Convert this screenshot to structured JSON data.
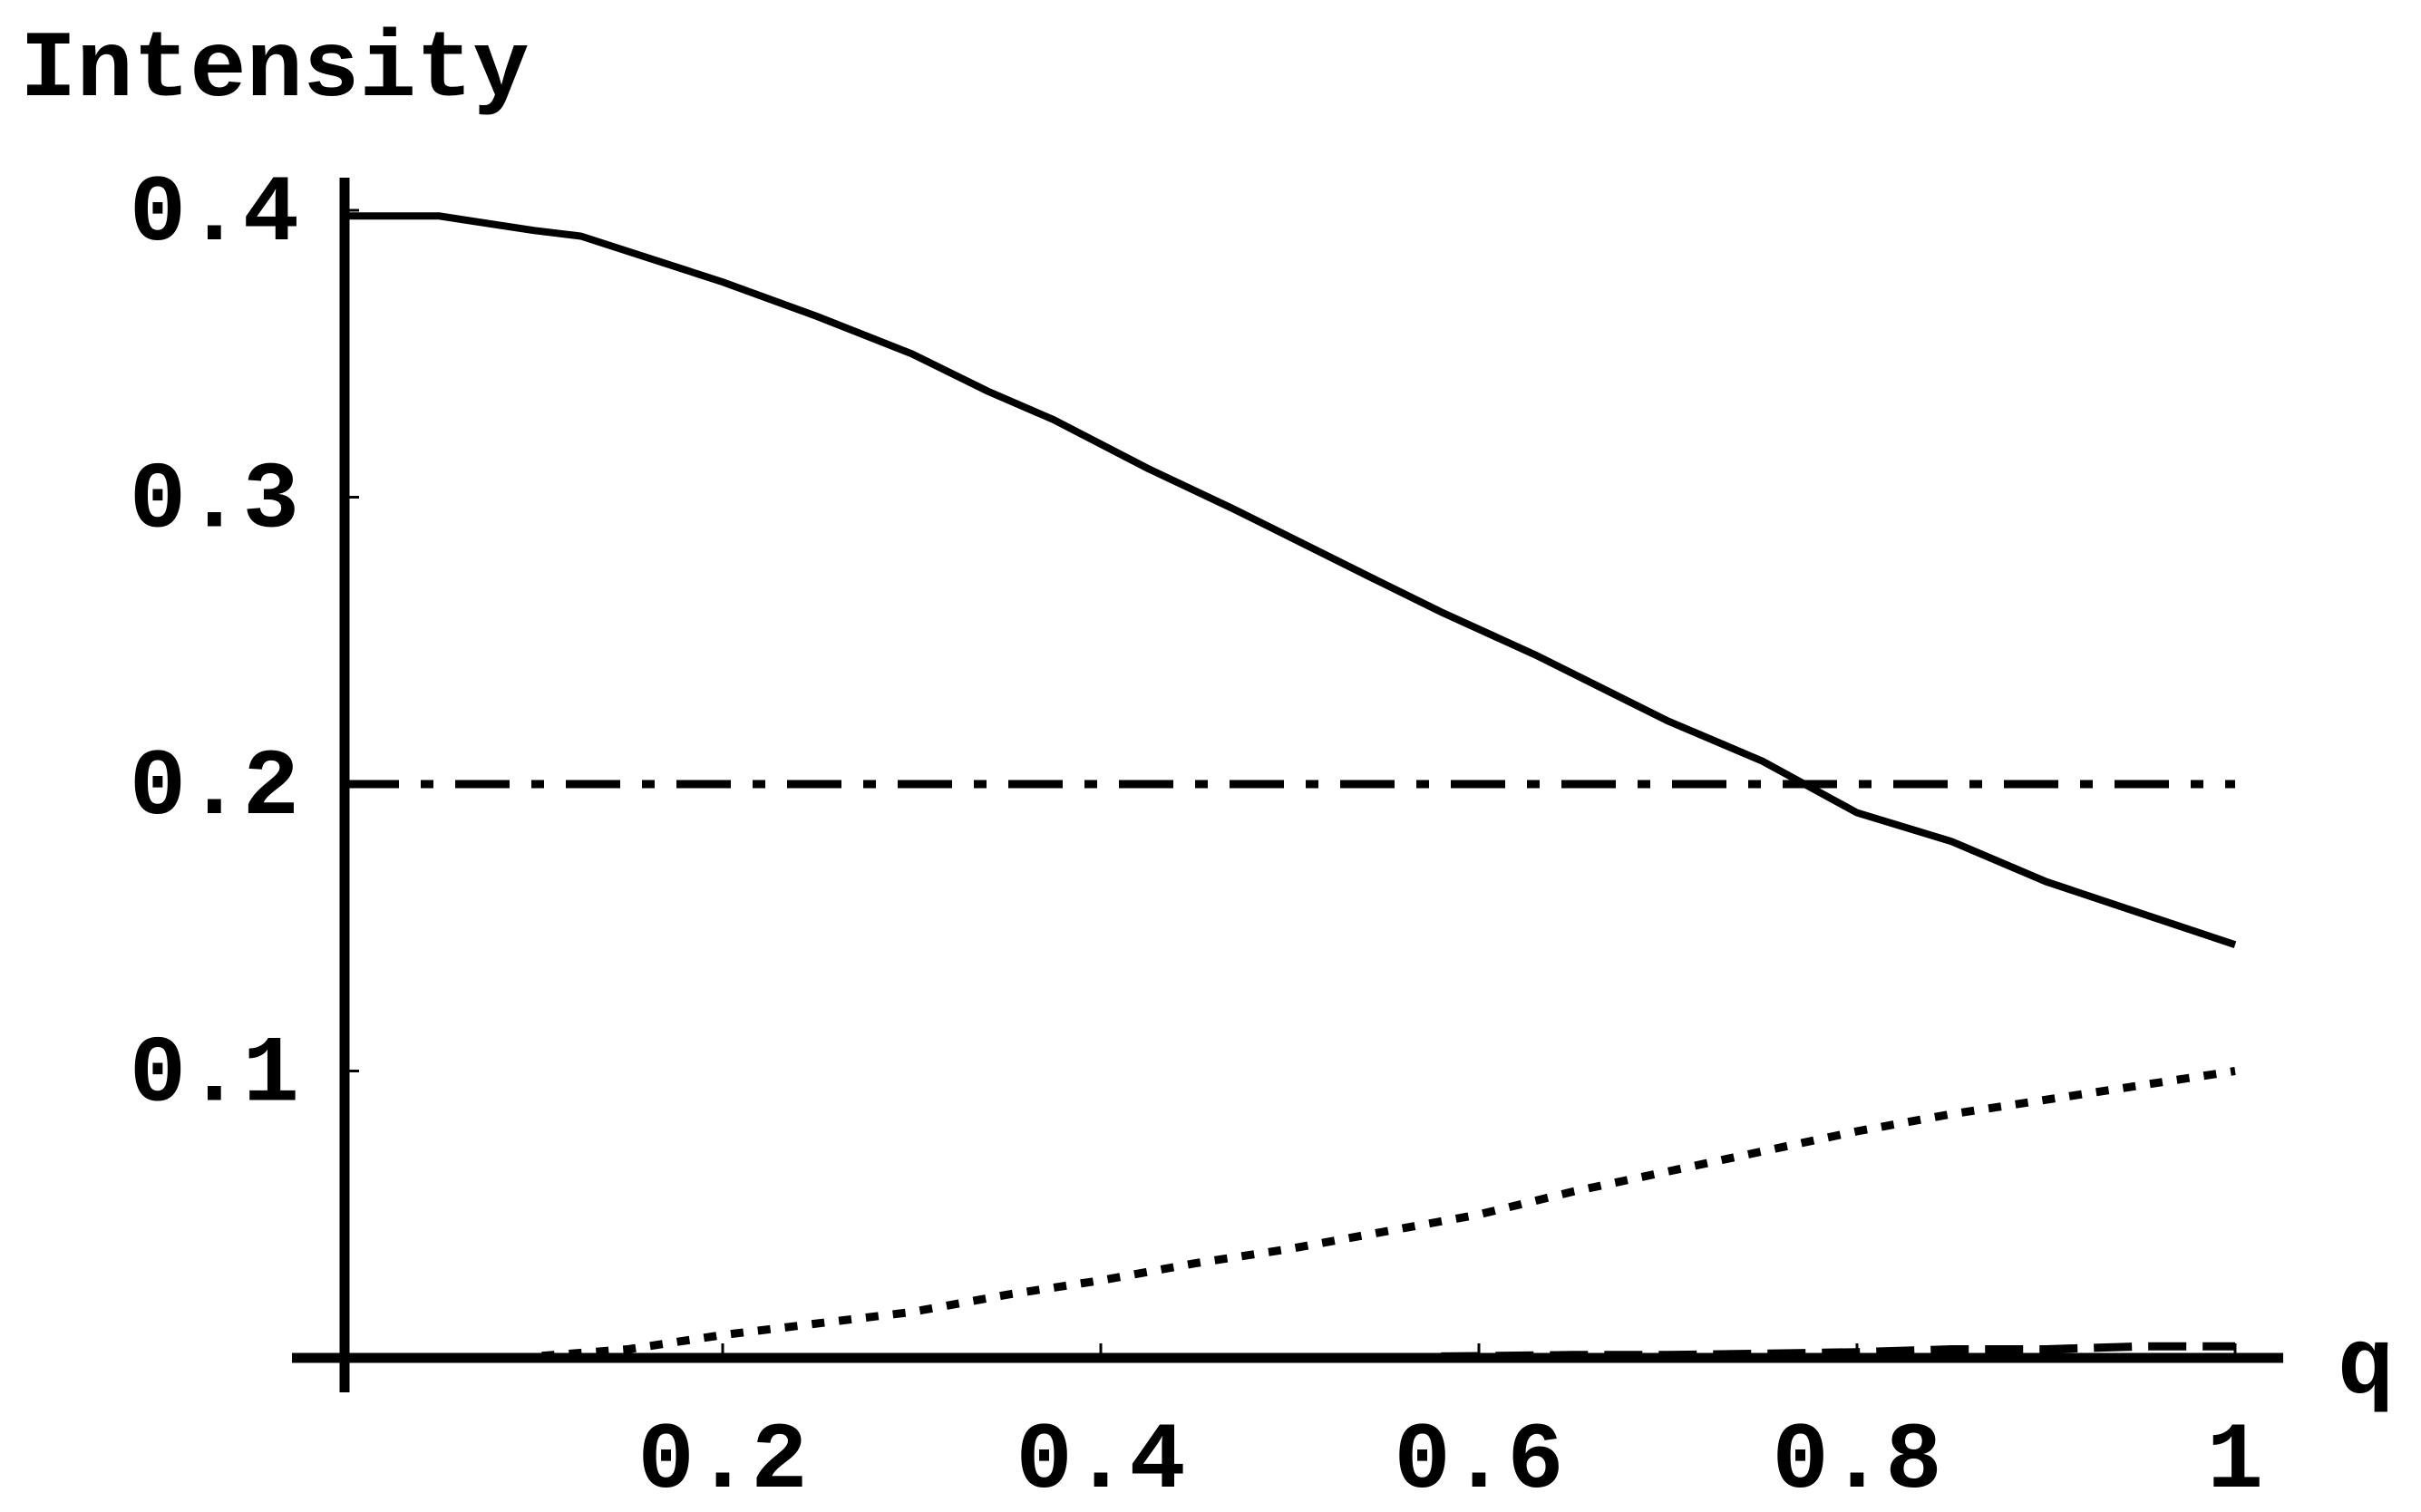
{
  "chart_data": {
    "type": "line",
    "title": "",
    "xlabel": "q",
    "ylabel": "Intensity",
    "xlim": [
      0,
      1
    ],
    "ylim": [
      0,
      0.4
    ],
    "x_ticks": [
      {
        "value": 0.2,
        "label": "0.2"
      },
      {
        "value": 0.4,
        "label": "0.4"
      },
      {
        "value": 0.6,
        "label": "0.6"
      },
      {
        "value": 0.8,
        "label": "0.8"
      },
      {
        "value": 1.0,
        "label": "1"
      }
    ],
    "y_ticks": [
      {
        "value": 0.1,
        "label": "0.1"
      },
      {
        "value": 0.2,
        "label": "0.2"
      },
      {
        "value": 0.3,
        "label": "0.3"
      },
      {
        "value": 0.4,
        "label": "0.4"
      }
    ],
    "grid": false,
    "legend": "none",
    "series": [
      {
        "style": "solid",
        "x": [
          0,
          0.05,
          0.1,
          0.125,
          0.2,
          0.25,
          0.3,
          0.34,
          0.375,
          0.425,
          0.47,
          0.54,
          0.58,
          0.63,
          0.7,
          0.75,
          0.8,
          0.85,
          0.9,
          0.95,
          1.0
        ],
        "y": [
          0.398,
          0.398,
          0.393,
          0.391,
          0.375,
          0.363,
          0.35,
          0.337,
          0.327,
          0.31,
          0.296,
          0.273,
          0.26,
          0.245,
          0.222,
          0.208,
          0.19,
          0.18,
          0.166,
          0.155,
          0.144
        ]
      },
      {
        "style": "dash-dot",
        "x": [
          0,
          1.0
        ],
        "y": [
          0.2,
          0.2
        ]
      },
      {
        "style": "dotted",
        "x": [
          0.09,
          0.15,
          0.2,
          0.25,
          0.3,
          0.35,
          0.4,
          0.45,
          0.5,
          0.55,
          0.6,
          0.65,
          0.7,
          0.75,
          0.8,
          0.85,
          0.9,
          0.95,
          1.0
        ],
        "y": [
          0.0,
          0.003,
          0.008,
          0.012,
          0.016,
          0.022,
          0.027,
          0.033,
          0.038,
          0.044,
          0.05,
          0.058,
          0.065,
          0.072,
          0.079,
          0.085,
          0.09,
          0.095,
          0.1
        ]
      },
      {
        "style": "dashed",
        "x": [
          0.58,
          0.65,
          0.7,
          0.75,
          0.8,
          0.85,
          0.9,
          0.95,
          1.0
        ],
        "y": [
          0.0005,
          0.001,
          0.001,
          0.0015,
          0.002,
          0.003,
          0.003,
          0.004,
          0.004
        ]
      }
    ]
  }
}
